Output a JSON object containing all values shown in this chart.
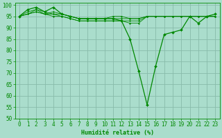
{
  "xlabel": "Humidité relative (%)",
  "bg_color": "#aaddcc",
  "grid_color": "#88bbaa",
  "line_color": "#008800",
  "xlim": [
    -0.5,
    23.5
  ],
  "ylim": [
    50,
    101
  ],
  "yticks": [
    50,
    55,
    60,
    65,
    70,
    75,
    80,
    85,
    90,
    95,
    100
  ],
  "xticks": [
    0,
    1,
    2,
    3,
    4,
    5,
    6,
    7,
    8,
    9,
    10,
    11,
    12,
    13,
    14,
    15,
    16,
    17,
    18,
    19,
    20,
    21,
    22,
    23
  ],
  "bundle_data": [
    [
      95,
      96,
      98,
      97,
      96,
      96,
      95,
      94,
      94,
      94,
      94,
      94,
      94,
      94,
      94,
      95,
      95,
      95,
      95,
      95,
      95,
      95,
      95,
      95
    ],
    [
      95,
      97,
      98,
      96,
      97,
      96,
      95,
      94,
      94,
      94,
      94,
      95,
      95,
      94,
      94,
      95,
      95,
      95,
      95,
      95,
      95,
      95,
      95,
      95
    ],
    [
      95,
      96,
      97,
      96,
      96,
      95,
      94,
      93,
      93,
      93,
      93,
      93,
      93,
      92,
      92,
      95,
      95,
      95,
      95,
      95,
      95,
      95,
      95,
      95
    ],
    [
      95,
      96,
      97,
      96,
      95,
      95,
      94,
      93,
      93,
      93,
      93,
      93,
      93,
      93,
      93,
      95,
      95,
      95,
      95,
      95,
      95,
      95,
      95,
      95
    ]
  ],
  "main_data": [
    95,
    98,
    99,
    97,
    99,
    96,
    95,
    94,
    94,
    94,
    94,
    94,
    93,
    85,
    71,
    56,
    73,
    87,
    88,
    89,
    95,
    92,
    95,
    96
  ],
  "xlabel_fontsize": 6,
  "tick_fontsize": 5.5
}
